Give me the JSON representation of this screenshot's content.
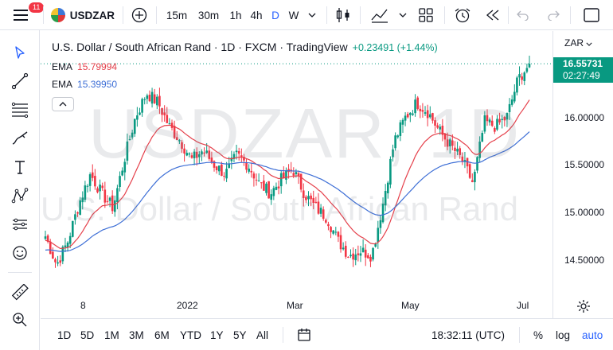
{
  "header": {
    "notifications": "11",
    "symbol": "USDZAR",
    "intervals": [
      "15m",
      "30m",
      "1h",
      "4h",
      "D",
      "W"
    ],
    "active_interval": "D"
  },
  "legend": {
    "title": "U.S. Dollar / South African Rand · 1D · FXCM · TradingView",
    "change": "+0.23491 (+1.44%)",
    "ema1_label": "EMA",
    "ema1_value": "15.79994",
    "ema2_label": "EMA",
    "ema2_value": "15.39950"
  },
  "watermark": {
    "ticker": "USDZAR, 1D",
    "name": "U.S. Dollar / South African Rand"
  },
  "price_axis": {
    "currency": "ZAR",
    "labels": [
      "16.00000",
      "15.50000",
      "15.00000",
      "14.50000"
    ],
    "current_price": "16.55731",
    "countdown": "02:27:49"
  },
  "time_axis": {
    "labels": [
      "8",
      "2022",
      "Mar",
      "May",
      "Jul"
    ]
  },
  "bottom": {
    "ranges": [
      "1D",
      "5D",
      "1M",
      "3M",
      "6M",
      "YTD",
      "1Y",
      "5Y",
      "All"
    ],
    "clock": "18:32:11 (UTC)",
    "percent": "%",
    "log": "log",
    "auto": "auto"
  },
  "colors": {
    "up": "#089981",
    "down": "#f23645",
    "ema_fast": "#e5404b",
    "ema_slow": "#3e6fd6",
    "accent": "#2962ff"
  },
  "chart_data": {
    "type": "candlestick",
    "ylim": [
      14.3,
      16.75
    ],
    "ema_fast_value": 15.79994,
    "ema_slow_value": 15.3995,
    "last_close": 16.55731,
    "close_path": [
      14.75,
      14.45,
      14.7,
      15.1,
      15.4,
      15.2,
      15.05,
      15.55,
      16.0,
      16.25,
      16.15,
      15.9,
      15.75,
      15.55,
      15.65,
      15.5,
      15.4,
      15.6,
      15.5,
      15.3,
      15.2,
      15.35,
      15.45,
      15.2,
      15.05,
      14.95,
      14.7,
      14.55,
      14.6,
      14.55,
      15.1,
      15.75,
      16.0,
      16.15,
      16.05,
      15.85,
      15.7,
      15.55,
      15.3,
      15.95,
      15.9,
      16.0,
      16.4,
      16.55
    ]
  }
}
